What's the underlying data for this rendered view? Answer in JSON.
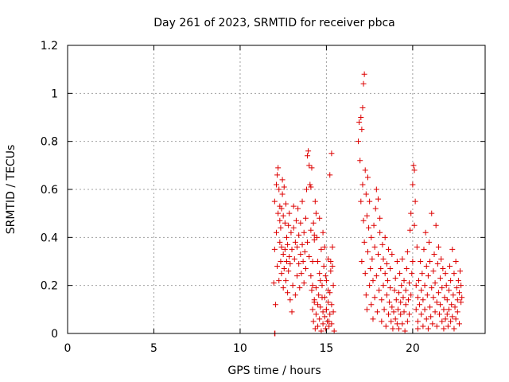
{
  "chart_data": {
    "type": "scatter",
    "title": "Day 261 of 2023, SRMTID for receiver pbca",
    "xlabel": "GPS time / hours",
    "ylabel": "SRMTID / TECUs",
    "xlim": [
      0,
      24.2
    ],
    "ylim": [
      0,
      1.2
    ],
    "xticks": [
      0,
      5,
      10,
      15,
      20
    ],
    "xtick_labels": [
      "0",
      "5",
      "10",
      "15",
      "20"
    ],
    "yticks": [
      0,
      0.2,
      0.4,
      0.6,
      0.8,
      1.0,
      1.2
    ],
    "ytick_labels": [
      "0",
      "0.2",
      "0.4",
      "0.6",
      "0.8",
      "1",
      "1.2"
    ],
    "grid": true,
    "marker": "plus",
    "color": "#dd0000",
    "series": [
      {
        "x": [
          11.95,
          12.0,
          12.0,
          12.05,
          12.1,
          12.1,
          12.15,
          12.15,
          12.2,
          12.2,
          12.25,
          12.25,
          12.3,
          12.3,
          12.3,
          12.35,
          12.35,
          12.4,
          12.4,
          12.4,
          12.45,
          12.45,
          12.5,
          12.5,
          12.5,
          12.55,
          12.55,
          12.6,
          12.6,
          12.65,
          12.65,
          12.7,
          12.7,
          12.75,
          12.75,
          12.8,
          12.8,
          12.85,
          12.85,
          12.9,
          12.9,
          12.95,
          13.0,
          13.0,
          13.05,
          13.1,
          13.1,
          13.15,
          13.2,
          13.2,
          13.25,
          13.3,
          13.3,
          13.35,
          13.4,
          13.4,
          13.45,
          13.5,
          13.5,
          13.55,
          13.6,
          13.6,
          13.65,
          13.7,
          13.7,
          13.75,
          13.8,
          13.8,
          13.85,
          13.9,
          13.9,
          13.95,
          14.0,
          14.0,
          14.05,
          14.1,
          14.1,
          14.15,
          14.2,
          14.2,
          14.25,
          14.3,
          14.3,
          14.35,
          14.4,
          14.4,
          14.45,
          14.5,
          14.5,
          14.55,
          14.6,
          14.6,
          14.65,
          14.7,
          14.7,
          14.75,
          14.8,
          14.8,
          14.85,
          14.9,
          14.9,
          14.95,
          15.0,
          15.0,
          15.05,
          15.1,
          15.1,
          15.15,
          15.2,
          15.2,
          15.25,
          15.3,
          15.3,
          15.35,
          15.4,
          15.4,
          15.45
        ],
        "y": [
          0.21,
          0.35,
          0.55,
          0.12,
          0.42,
          0.62,
          0.28,
          0.66,
          0.5,
          0.69,
          0.22,
          0.6,
          0.38,
          0.47,
          0.53,
          0.3,
          0.44,
          0.25,
          0.36,
          0.52,
          0.58,
          0.64,
          0.19,
          0.33,
          0.49,
          0.27,
          0.61,
          0.35,
          0.46,
          0.22,
          0.54,
          0.3,
          0.4,
          0.17,
          0.37,
          0.26,
          0.45,
          0.32,
          0.5,
          0.14,
          0.29,
          0.42,
          0.09,
          0.35,
          0.2,
          0.44,
          0.53,
          0.31,
          0.16,
          0.38,
          0.47,
          0.24,
          0.36,
          0.52,
          0.29,
          0.41,
          0.19,
          0.33,
          0.46,
          0.25,
          0.37,
          0.55,
          0.3,
          0.21,
          0.42,
          0.34,
          0.27,
          0.48,
          0.6,
          0.38,
          0.74,
          0.76,
          0.7,
          0.32,
          0.62,
          0.24,
          0.43,
          0.18,
          0.1,
          0.3,
          0.05,
          0.14,
          0.39,
          0.02,
          0.19,
          0.08,
          0.4,
          0.12,
          0.03,
          0.16,
          0.25,
          0.06,
          0.11,
          0.35,
          0.01,
          0.2,
          0.09,
          0.04,
          0.28,
          0.07,
          0.15,
          0.02,
          0.1,
          0.22,
          0.05,
          0.13,
          0.31,
          0.03,
          0.08,
          0.17,
          0.26,
          0.04,
          0.12,
          0.36,
          0.2,
          0.09,
          0.01
        ]
      },
      {
        "x": [
          14.2,
          14.3,
          14.35,
          14.5,
          14.6,
          14.65,
          14.75,
          14.9,
          15.0,
          15.1,
          15.2,
          15.3,
          14.3,
          14.4,
          14.8,
          14.95,
          15.15,
          15.25,
          15.35,
          14.1,
          14.15,
          14.25
        ],
        "y": [
          0.2,
          0.41,
          0.55,
          0.3,
          0.48,
          0.22,
          0.15,
          0.36,
          0.1,
          0.18,
          0.66,
          0.75,
          0.13,
          0.5,
          0.42,
          0.24,
          0.05,
          0.3,
          0.28,
          0.61,
          0.69,
          0.46
        ]
      },
      {
        "x": [
          16.85,
          16.9,
          16.95,
          17.0,
          17.0,
          17.05,
          17.05,
          17.1,
          17.1,
          17.15,
          17.15,
          17.2,
          17.2,
          17.25,
          17.25,
          17.3,
          17.3,
          17.35,
          17.35,
          17.4,
          17.4,
          17.45,
          17.5,
          17.5,
          17.55,
          17.6,
          17.6,
          17.65,
          17.7,
          17.7,
          17.75,
          17.8,
          17.8,
          17.85,
          17.9,
          17.9,
          17.95,
          18.0,
          18.0,
          18.05,
          18.1,
          18.1,
          18.15,
          18.2,
          18.2,
          18.25,
          18.3,
          18.3,
          18.35,
          18.4,
          18.4,
          18.45,
          18.5,
          18.5,
          18.55,
          18.6,
          18.6,
          18.65,
          18.7,
          18.7,
          18.75,
          18.8,
          18.8,
          18.85,
          18.9,
          18.95,
          19.0,
          19.0,
          19.05,
          19.1,
          19.1,
          19.15,
          19.2,
          19.2,
          19.25,
          19.3,
          19.3,
          19.35,
          19.4,
          19.4,
          19.45,
          19.5,
          19.5,
          19.55,
          19.6,
          19.6,
          19.65,
          19.7,
          19.7,
          19.75,
          19.8,
          19.8,
          19.85,
          19.9,
          19.9,
          19.95,
          20.0,
          20.0,
          20.05,
          20.1,
          20.1,
          20.15,
          20.2,
          20.2,
          20.25,
          20.3,
          20.3
        ],
        "y": [
          0.8,
          0.88,
          0.72,
          0.9,
          0.55,
          0.85,
          0.3,
          0.94,
          0.62,
          1.04,
          0.47,
          1.08,
          0.38,
          0.68,
          0.25,
          0.58,
          0.16,
          0.49,
          0.1,
          0.65,
          0.34,
          0.44,
          0.2,
          0.55,
          0.27,
          0.12,
          0.4,
          0.31,
          0.06,
          0.22,
          0.45,
          0.15,
          0.36,
          0.52,
          0.24,
          0.6,
          0.09,
          0.33,
          0.56,
          0.18,
          0.42,
          0.48,
          0.27,
          0.05,
          0.14,
          0.37,
          0.2,
          0.31,
          0.1,
          0.25,
          0.4,
          0.03,
          0.16,
          0.29,
          0.22,
          0.08,
          0.35,
          0.13,
          0.19,
          0.27,
          0.05,
          0.11,
          0.33,
          0.02,
          0.09,
          0.18,
          0.06,
          0.23,
          0.14,
          0.04,
          0.3,
          0.1,
          0.17,
          0.02,
          0.25,
          0.08,
          0.13,
          0.2,
          0.04,
          0.31,
          0.15,
          0.09,
          0.22,
          0.01,
          0.12,
          0.18,
          0.27,
          0.05,
          0.34,
          0.14,
          0.08,
          0.21,
          0.43,
          0.16,
          0.5,
          0.25,
          0.3,
          0.62,
          0.7,
          0.45,
          0.68,
          0.55,
          0.2,
          0.1,
          0.36,
          0.02,
          0.15
        ]
      },
      {
        "x": [
          20.3,
          20.35,
          20.4,
          20.45,
          20.5,
          20.5,
          20.55,
          20.6,
          20.6,
          20.65,
          20.7,
          20.7,
          20.75,
          20.8,
          20.8,
          20.85,
          20.9,
          20.9,
          20.95,
          21.0,
          21.0,
          21.05,
          21.1,
          21.1,
          21.15,
          21.2,
          21.2,
          21.25,
          21.3,
          21.3,
          21.35,
          21.4,
          21.4,
          21.45,
          21.5,
          21.5,
          21.55,
          21.6,
          21.6,
          21.65,
          21.7,
          21.7,
          21.75,
          21.8,
          21.8,
          21.85,
          21.9,
          21.9,
          21.95,
          22.0,
          22.0,
          22.05,
          22.1,
          22.1,
          22.15,
          22.2,
          22.2,
          22.25,
          22.3,
          22.3,
          22.35,
          22.4,
          22.4,
          22.45,
          22.5,
          22.5,
          22.55,
          22.6,
          22.6,
          22.65,
          22.7,
          22.7,
          22.75,
          22.8,
          22.8,
          22.85
        ],
        "y": [
          0.05,
          0.22,
          0.12,
          0.3,
          0.08,
          0.18,
          0.25,
          0.03,
          0.14,
          0.35,
          0.1,
          0.2,
          0.42,
          0.06,
          0.28,
          0.16,
          0.02,
          0.24,
          0.38,
          0.11,
          0.3,
          0.07,
          0.19,
          0.5,
          0.04,
          0.26,
          0.15,
          0.33,
          0.09,
          0.21,
          0.45,
          0.13,
          0.03,
          0.29,
          0.17,
          0.36,
          0.08,
          0.23,
          0.12,
          0.31,
          0.05,
          0.19,
          0.27,
          0.1,
          0.02,
          0.15,
          0.25,
          0.06,
          0.2,
          0.08,
          0.14,
          0.03,
          0.18,
          0.1,
          0.28,
          0.05,
          0.22,
          0.12,
          0.35,
          0.07,
          0.16,
          0.02,
          0.25,
          0.11,
          0.3,
          0.06,
          0.19,
          0.14,
          0.09,
          0.22,
          0.17,
          0.04,
          0.26,
          0.13,
          0.2,
          0.15
        ]
      },
      {
        "x": [
          12.0,
          12.02
        ],
        "y": [
          0.0,
          0.0
        ]
      }
    ]
  }
}
